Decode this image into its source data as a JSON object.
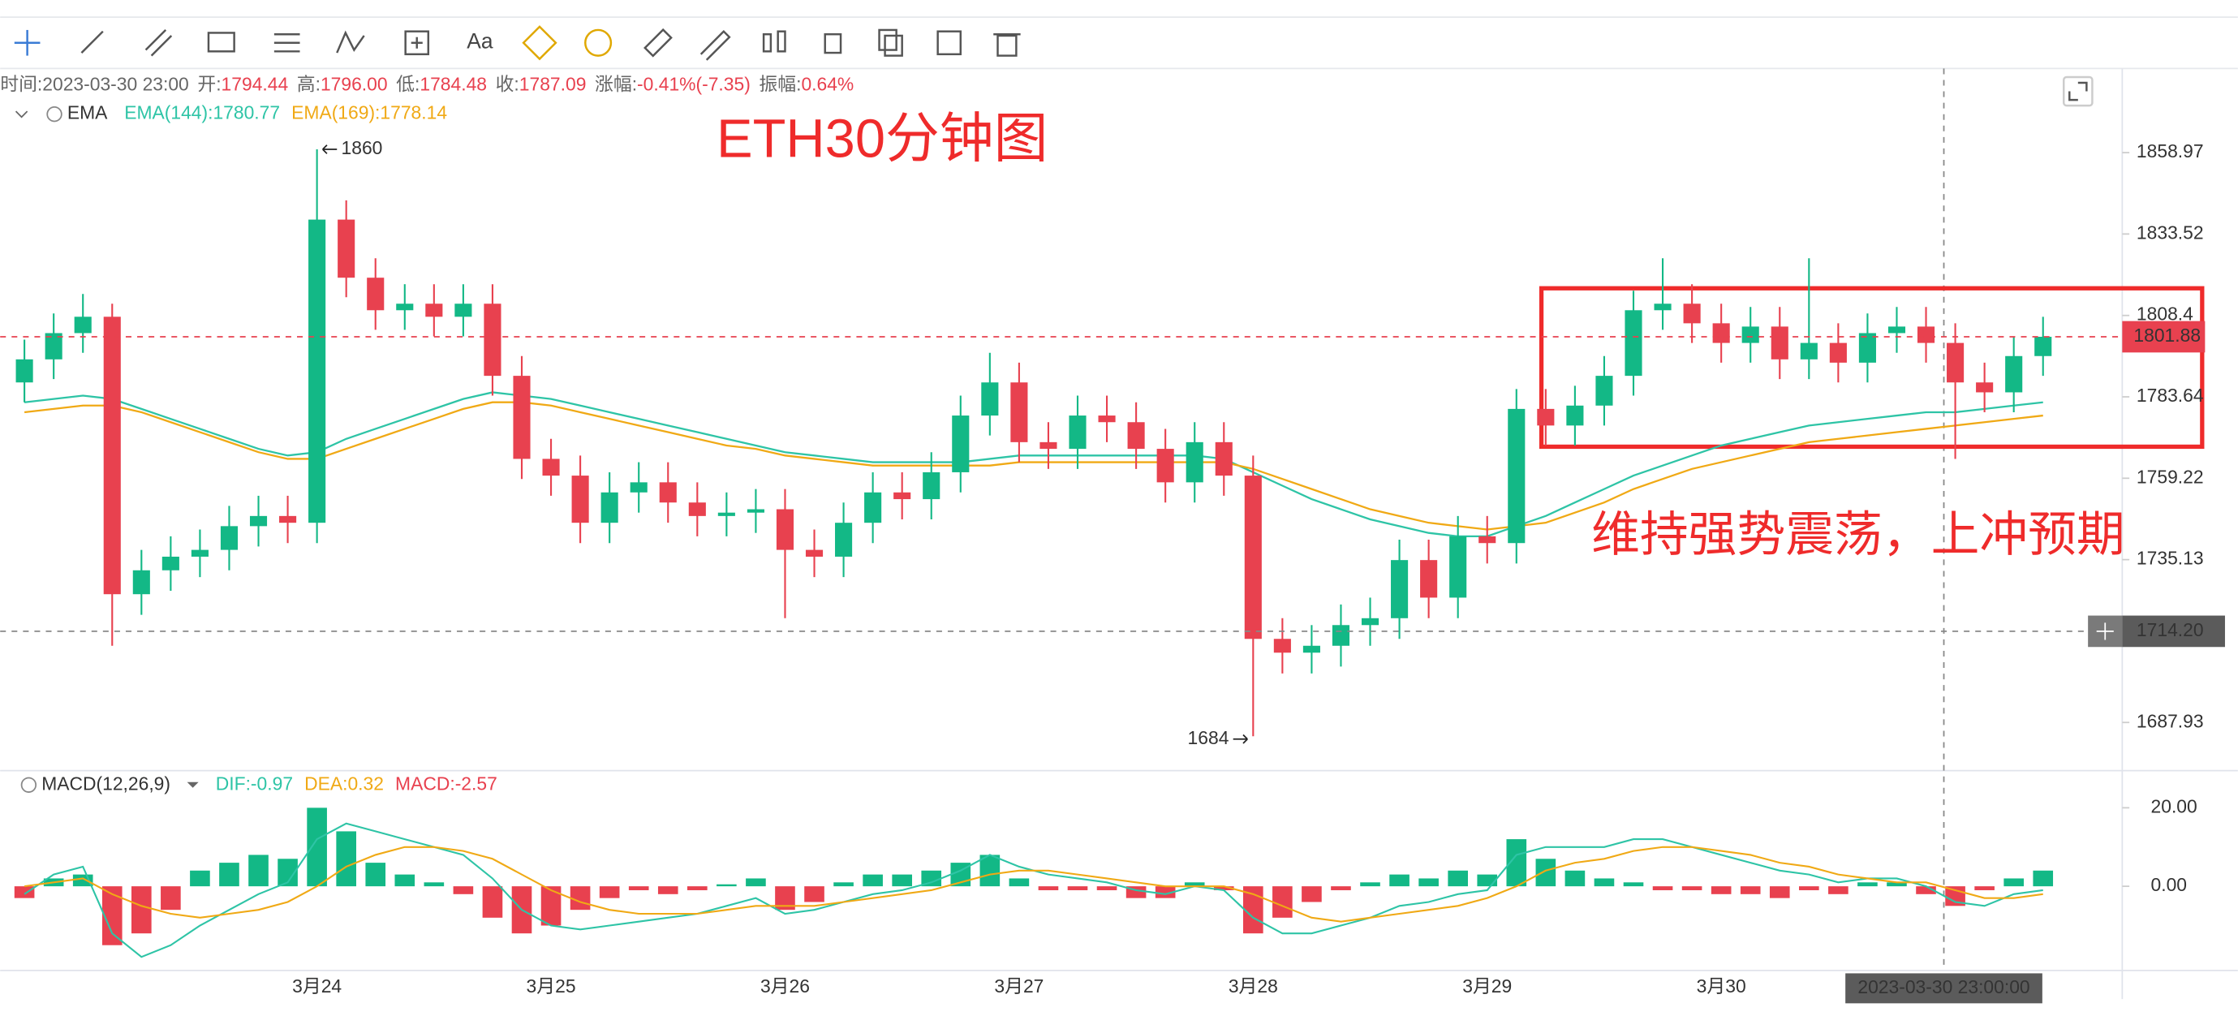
{
  "toolbar": {
    "text_tool": "Aa"
  },
  "chart_data": [
    {
      "type": "candlestick",
      "title": "ETH30分钟图",
      "annotation": "维持强势震荡，上冲预期",
      "indicator": "EMA",
      "info": [
        {
          "label": "时间:",
          "value": "2023-03-30 23:00"
        },
        {
          "label": "开:",
          "value": "1794.44"
        },
        {
          "label": "高:",
          "value": "1796.00"
        },
        {
          "label": "低:",
          "value": "1784.48"
        },
        {
          "label": "收:",
          "value": "1787.09"
        },
        {
          "label": "涨幅:",
          "value": "-0.41%(-7.35)"
        },
        {
          "label": "振幅:",
          "value": "0.64%"
        }
      ],
      "categories": [
        null,
        null,
        null,
        null,
        null,
        null,
        null,
        null,
        null,
        null,
        "3月24",
        null,
        null,
        null,
        null,
        null,
        null,
        null,
        "3月25",
        null,
        null,
        null,
        null,
        null,
        null,
        null,
        "3月26",
        null,
        null,
        null,
        null,
        null,
        null,
        null,
        "3月27",
        null,
        null,
        null,
        null,
        null,
        null,
        null,
        "3月28",
        null,
        null,
        null,
        null,
        null,
        null,
        null,
        "3月29",
        null,
        null,
        null,
        null,
        null,
        null,
        null,
        "3月30",
        null,
        null,
        null,
        null,
        null,
        null,
        null,
        null,
        null,
        null,
        null
      ],
      "open": [
        1788,
        1795,
        1803,
        1808,
        1725,
        1732,
        1736,
        1738,
        1745,
        1748,
        1746,
        1838,
        1820,
        1810,
        1812,
        1808,
        1812,
        1790,
        1765,
        1760,
        1746,
        1755,
        1758,
        1752,
        1748,
        1749,
        1750,
        1738,
        1736,
        1746,
        1755,
        1753,
        1761,
        1778,
        1788,
        1770,
        1768,
        1778,
        1776,
        1768,
        1758,
        1770,
        1760,
        1712,
        1708,
        1710,
        1716,
        1718,
        1735,
        1724,
        1742,
        1740,
        1780,
        1775,
        1781,
        1790,
        1810,
        1812,
        1806,
        1800,
        1805,
        1795,
        1800,
        1794,
        1803,
        1805,
        1800,
        1788,
        1785,
        1796
      ],
      "high": [
        1801,
        1809,
        1815,
        1812,
        1738,
        1742,
        1744,
        1751,
        1754,
        1754,
        1860,
        1844,
        1826,
        1818,
        1818,
        1818,
        1818,
        1796,
        1771,
        1766,
        1761,
        1764,
        1764,
        1758,
        1755,
        1756,
        1756,
        1744,
        1752,
        1761,
        1761,
        1767,
        1784,
        1797,
        1794,
        1776,
        1784,
        1784,
        1782,
        1774,
        1776,
        1776,
        1766,
        1718,
        1716,
        1722,
        1724,
        1741,
        1741,
        1748,
        1748,
        1786,
        1786,
        1787,
        1796,
        1816,
        1826,
        1818,
        1812,
        1811,
        1811,
        1826,
        1806,
        1809,
        1811,
        1811,
        1806,
        1794,
        1802,
        1808
      ],
      "low": [
        1782,
        1789,
        1797,
        1710,
        1719,
        1726,
        1730,
        1732,
        1739,
        1740,
        1740,
        1814,
        1804,
        1804,
        1802,
        1802,
        1784,
        1759,
        1754,
        1740,
        1740,
        1749,
        1746,
        1742,
        1742,
        1743,
        1718,
        1730,
        1730,
        1740,
        1747,
        1747,
        1755,
        1772,
        1764,
        1762,
        1762,
        1770,
        1762,
        1752,
        1752,
        1754,
        1684,
        1702,
        1702,
        1704,
        1710,
        1712,
        1718,
        1718,
        1734,
        1734,
        1769,
        1769,
        1775,
        1784,
        1804,
        1800,
        1794,
        1794,
        1789,
        1789,
        1788,
        1788,
        1797,
        1794,
        1765,
        1779,
        1779,
        1790
      ],
      "close": [
        1795,
        1803,
        1808,
        1725,
        1732,
        1736,
        1738,
        1745,
        1748,
        1746,
        1838,
        1820,
        1810,
        1812,
        1808,
        1812,
        1790,
        1765,
        1760,
        1746,
        1755,
        1758,
        1752,
        1748,
        1749,
        1750,
        1738,
        1736,
        1746,
        1755,
        1753,
        1761,
        1778,
        1788,
        1770,
        1768,
        1778,
        1776,
        1768,
        1758,
        1770,
        1760,
        1712,
        1708,
        1710,
        1716,
        1718,
        1735,
        1724,
        1742,
        1740,
        1780,
        1775,
        1781,
        1790,
        1810,
        1812,
        1806,
        1800,
        1805,
        1795,
        1800,
        1794,
        1803,
        1805,
        1800,
        1788,
        1785,
        1796,
        1801.88
      ],
      "up_color": "#13b886",
      "down_color": "#e8414f",
      "series": [
        {
          "name": "EMA(144):1780.77",
          "color": "#2ec4a6",
          "values": [
            1782,
            1783,
            1784,
            1783,
            1780,
            1777,
            1774,
            1771,
            1768,
            1766,
            1767,
            1771,
            1774,
            1777,
            1780,
            1783,
            1785,
            1784,
            1783,
            1781,
            1779,
            1777,
            1775,
            1773,
            1771,
            1769,
            1767,
            1766,
            1765,
            1764,
            1764,
            1764,
            1764,
            1765,
            1766,
            1766,
            1766,
            1766,
            1766,
            1766,
            1766,
            1765,
            1761,
            1757,
            1753,
            1750,
            1747,
            1745,
            1743,
            1742,
            1742,
            1745,
            1748,
            1752,
            1756,
            1760,
            1763,
            1766,
            1769,
            1771,
            1773,
            1775,
            1776,
            1777,
            1778,
            1779,
            1779,
            1780,
            1781,
            1782
          ]
        },
        {
          "name": "EMA(169):1778.14",
          "color": "#f0a915",
          "values": [
            1779,
            1780,
            1781,
            1781,
            1779,
            1776,
            1773,
            1770,
            1767,
            1765,
            1765,
            1768,
            1771,
            1774,
            1777,
            1780,
            1782,
            1782,
            1781,
            1779,
            1777,
            1775,
            1773,
            1771,
            1769,
            1768,
            1766,
            1765,
            1764,
            1763,
            1763,
            1763,
            1763,
            1763,
            1764,
            1764,
            1764,
            1764,
            1764,
            1764,
            1764,
            1764,
            1762,
            1759,
            1756,
            1753,
            1750,
            1748,
            1746,
            1745,
            1744,
            1745,
            1746,
            1749,
            1752,
            1756,
            1759,
            1762,
            1764,
            1766,
            1768,
            1770,
            1771,
            1772,
            1773,
            1774,
            1775,
            1776,
            1777,
            1778
          ]
        }
      ],
      "log": true,
      "ylim": [
        1674.2,
        1886.1
      ],
      "yticks": [
        1858.97,
        1833.52,
        1808.4,
        1783.64,
        1759.22,
        1735.13,
        1687.93
      ],
      "extremes": [
        {
          "value": 1860,
          "side": "high"
        },
        {
          "value": 1684,
          "side": "low"
        }
      ],
      "last_price": {
        "value": 1801.88,
        "color": "#e8414f"
      },
      "crosshair": {
        "value": 1714.2,
        "label": "1714.20",
        "time": "2023-03-30 23:00:00"
      }
    },
    {
      "type": "macd",
      "title": "MACD(12,26,9)",
      "series": [
        {
          "name": "DIF:-0.97",
          "color": "#2ec4a6",
          "values": [
            -2,
            3,
            5,
            -12,
            -18,
            -15,
            -10,
            -6,
            -2,
            1,
            12,
            16,
            14,
            12,
            10,
            8,
            2,
            -6,
            -10,
            -11,
            -10,
            -9,
            -8,
            -7,
            -5,
            -3,
            -7,
            -6,
            -4,
            -2,
            -1,
            1,
            4,
            8,
            5,
            3,
            2,
            1,
            -1,
            -2,
            0,
            -1,
            -8,
            -12,
            -12,
            -10,
            -8,
            -5,
            -4,
            -2,
            -1,
            8,
            10,
            10,
            10,
            12,
            12,
            10,
            8,
            6,
            4,
            3,
            1,
            2,
            2,
            0,
            -4,
            -5,
            -2,
            -1
          ]
        },
        {
          "name": "DEA:0.32",
          "color": "#f0a915",
          "values": [
            0,
            1,
            2,
            -2,
            -5,
            -7,
            -8,
            -7,
            -6,
            -4,
            0,
            5,
            8,
            10,
            10,
            9,
            7,
            3,
            -1,
            -4,
            -6,
            -7,
            -7,
            -7,
            -6,
            -5,
            -5,
            -5,
            -4,
            -3,
            -2,
            -1,
            1,
            3,
            4,
            4,
            3,
            2,
            1,
            0,
            0,
            0,
            -2,
            -5,
            -8,
            -9,
            -8,
            -7,
            -6,
            -5,
            -3,
            0,
            4,
            6,
            7,
            9,
            10,
            10,
            9,
            8,
            6,
            5,
            3,
            2,
            1,
            1,
            -1,
            -3,
            -3,
            -2
          ]
        },
        {
          "name": "MACD:-2.57",
          "color": "#e8414f",
          "values": [
            -3,
            2,
            3,
            -15,
            -12,
            -6,
            4,
            6,
            8,
            7,
            20,
            14,
            6,
            3,
            1,
            -2,
            -8,
            -12,
            -10,
            -6,
            -3,
            -1,
            -2,
            -1,
            0.5,
            2,
            -6,
            -4,
            1,
            3,
            3,
            4,
            6,
            8,
            2,
            -1,
            -1,
            -1,
            -3,
            -3,
            1,
            -1,
            -12,
            -8,
            -4,
            -1,
            1,
            3,
            2,
            4,
            3,
            12,
            7,
            4,
            2,
            1,
            -1,
            -1,
            -2,
            -2,
            -3,
            -1,
            -2,
            1,
            1,
            -2,
            -5,
            -1,
            2,
            4
          ]
        }
      ],
      "up_color": "#13b886",
      "down_color": "#e8414f",
      "ylim": [
        -21.45,
        29.45
      ],
      "yticks": [
        {
          "value": 20,
          "label": "20.00"
        },
        {
          "value": 0,
          "label": "0.00"
        }
      ]
    }
  ]
}
